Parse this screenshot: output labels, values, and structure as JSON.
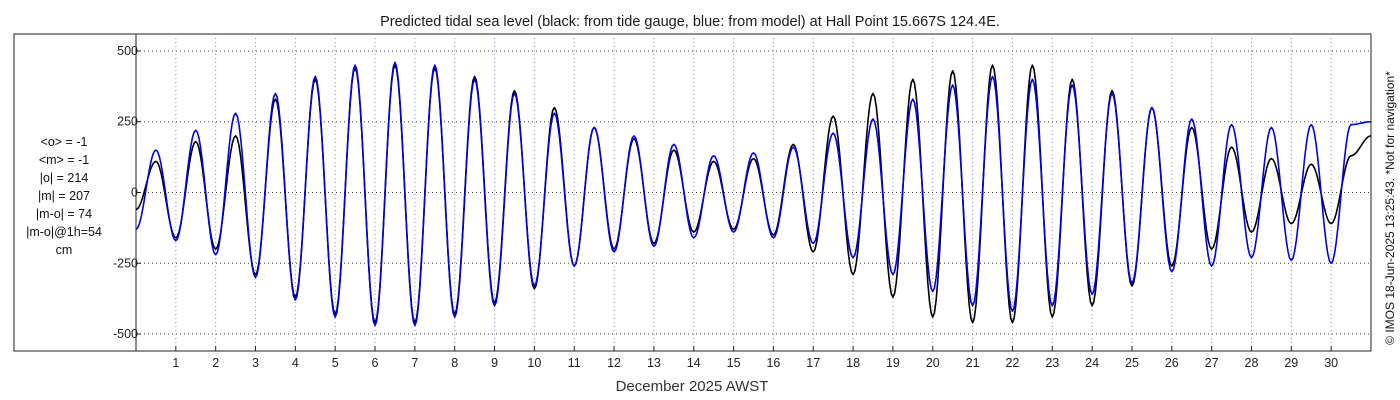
{
  "chart_data": {
    "type": "line",
    "title": "Predicted tidal sea level (black: from tide gauge, blue: from model) at Hall Point 15.667S 124.4E.",
    "xlabel": "December 2025 AWST",
    "ylabel": "",
    "x_ticks": [
      "1",
      "2",
      "3",
      "4",
      "5",
      "6",
      "7",
      "8",
      "9",
      "10",
      "11",
      "12",
      "13",
      "14",
      "15",
      "16",
      "17",
      "18",
      "19",
      "20",
      "21",
      "22",
      "23",
      "24",
      "25",
      "26",
      "27",
      "28",
      "29",
      "30"
    ],
    "y_ticks": [
      500,
      250,
      0,
      -250,
      -500
    ],
    "y_tick_labels": [
      "500",
      "250",
      "0",
      "-250",
      "-500"
    ],
    "xlim": [
      0.0,
      31.0
    ],
    "ylim": [
      -560,
      560
    ],
    "grid": true,
    "series": [
      {
        "color": "#000000",
        "values": [
          [
            0.0,
            -60
          ],
          [
            0.5,
            110
          ],
          [
            1.0,
            -160
          ],
          [
            1.5,
            180
          ],
          [
            2.0,
            -200
          ],
          [
            2.5,
            200
          ],
          [
            3.0,
            -290
          ],
          [
            3.5,
            330
          ],
          [
            4.0,
            -370
          ],
          [
            4.5,
            400
          ],
          [
            5.0,
            -430
          ],
          [
            5.5,
            440
          ],
          [
            6.0,
            -460
          ],
          [
            6.5,
            450
          ],
          [
            7.0,
            -460
          ],
          [
            7.5,
            440
          ],
          [
            8.0,
            -430
          ],
          [
            8.5,
            410
          ],
          [
            9.0,
            -390
          ],
          [
            9.5,
            360
          ],
          [
            10.0,
            -340
          ],
          [
            10.5,
            300
          ],
          [
            11.0,
            -260
          ],
          [
            11.5,
            230
          ],
          [
            12.0,
            -200
          ],
          [
            12.5,
            190
          ],
          [
            13.0,
            -180
          ],
          [
            13.5,
            150
          ],
          [
            14.0,
            -140
          ],
          [
            14.5,
            110
          ],
          [
            15.0,
            -130
          ],
          [
            15.5,
            120
          ],
          [
            16.0,
            -150
          ],
          [
            16.5,
            170
          ],
          [
            17.0,
            -210
          ],
          [
            17.5,
            270
          ],
          [
            18.0,
            -290
          ],
          [
            18.5,
            350
          ],
          [
            19.0,
            -370
          ],
          [
            19.5,
            400
          ],
          [
            20.0,
            -440
          ],
          [
            20.5,
            430
          ],
          [
            21.0,
            -460
          ],
          [
            21.5,
            450
          ],
          [
            22.0,
            -460
          ],
          [
            22.5,
            450
          ],
          [
            23.0,
            -440
          ],
          [
            23.5,
            400
          ],
          [
            24.0,
            -400
          ],
          [
            24.5,
            360
          ],
          [
            25.0,
            -330
          ],
          [
            25.5,
            300
          ],
          [
            26.0,
            -260
          ],
          [
            26.5,
            230
          ],
          [
            27.0,
            -200
          ],
          [
            27.5,
            160
          ],
          [
            28.0,
            -140
          ],
          [
            28.5,
            120
          ],
          [
            29.0,
            -110
          ],
          [
            29.5,
            100
          ],
          [
            30.0,
            -110
          ],
          [
            30.5,
            130
          ],
          [
            31.0,
            200
          ]
        ]
      },
      {
        "color": "#0000ee",
        "values": [
          [
            0.0,
            -130
          ],
          [
            0.5,
            150
          ],
          [
            1.0,
            -170
          ],
          [
            1.5,
            220
          ],
          [
            2.0,
            -220
          ],
          [
            2.5,
            280
          ],
          [
            3.0,
            -300
          ],
          [
            3.5,
            350
          ],
          [
            4.0,
            -380
          ],
          [
            4.5,
            410
          ],
          [
            5.0,
            -440
          ],
          [
            5.5,
            450
          ],
          [
            6.0,
            -470
          ],
          [
            6.5,
            460
          ],
          [
            7.0,
            -470
          ],
          [
            7.5,
            450
          ],
          [
            8.0,
            -440
          ],
          [
            8.5,
            400
          ],
          [
            9.0,
            -400
          ],
          [
            9.5,
            350
          ],
          [
            10.0,
            -330
          ],
          [
            10.5,
            280
          ],
          [
            11.0,
            -260
          ],
          [
            11.5,
            230
          ],
          [
            12.0,
            -210
          ],
          [
            12.5,
            200
          ],
          [
            13.0,
            -190
          ],
          [
            13.5,
            170
          ],
          [
            14.0,
            -160
          ],
          [
            14.5,
            130
          ],
          [
            15.0,
            -140
          ],
          [
            15.5,
            140
          ],
          [
            16.0,
            -160
          ],
          [
            16.5,
            160
          ],
          [
            17.0,
            -180
          ],
          [
            17.5,
            210
          ],
          [
            18.0,
            -230
          ],
          [
            18.5,
            260
          ],
          [
            19.0,
            -290
          ],
          [
            19.5,
            330
          ],
          [
            20.0,
            -350
          ],
          [
            20.5,
            380
          ],
          [
            21.0,
            -400
          ],
          [
            21.5,
            410
          ],
          [
            22.0,
            -420
          ],
          [
            22.5,
            400
          ],
          [
            23.0,
            -400
          ],
          [
            23.5,
            380
          ],
          [
            24.0,
            -360
          ],
          [
            24.5,
            350
          ],
          [
            25.0,
            -320
          ],
          [
            25.5,
            300
          ],
          [
            26.0,
            -280
          ],
          [
            26.5,
            260
          ],
          [
            27.0,
            -260
          ],
          [
            27.5,
            240
          ],
          [
            28.0,
            -230
          ],
          [
            28.5,
            230
          ],
          [
            29.0,
            -240
          ],
          [
            29.5,
            240
          ],
          [
            30.0,
            -250
          ],
          [
            30.5,
            240
          ],
          [
            31.0,
            250
          ]
        ]
      }
    ]
  },
  "stats": {
    "mean_obs": "<o> = -1",
    "mean_model": "<m> = -1",
    "abs_obs": "|o| = 214",
    "abs_model": "|m| = 207",
    "abs_diff": "|m-o| = 74",
    "abs_diff_1h": "|m-o|@1h=54",
    "unit": "cm"
  },
  "side_note": "© IMOS 18-Jun-2025 13:25:43.  *Not for navigation*"
}
